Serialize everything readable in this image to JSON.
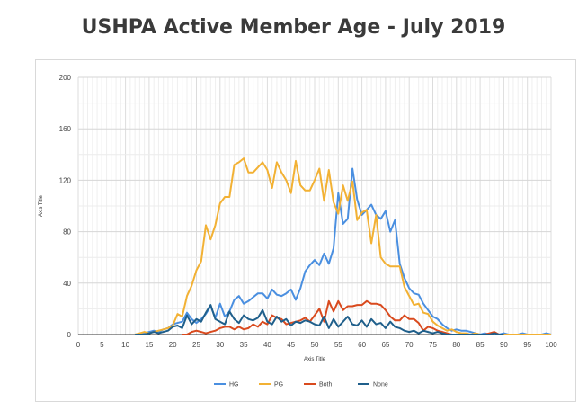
{
  "title": "USHPA Active Member Age - July 2019",
  "colors": {
    "HG": "#4a8fe0",
    "PG": "#f2b134",
    "Both": "#d94a1e",
    "None": "#1f5f8b"
  },
  "chart_data": {
    "type": "line",
    "title": "USHPA Active Member Age - July 2019",
    "xlabel": "Axis Title",
    "ylabel": "Axis Title",
    "xlim": [
      0,
      100
    ],
    "ylim": [
      0,
      200
    ],
    "xticks": [
      0,
      5,
      10,
      15,
      20,
      25,
      30,
      35,
      40,
      45,
      50,
      55,
      60,
      65,
      70,
      75,
      80,
      85,
      90,
      95,
      100
    ],
    "yticks": [
      0,
      40,
      80,
      120,
      160,
      200
    ],
    "grid": true,
    "legend_position": "bottom",
    "series": [
      {
        "name": "HG",
        "x": [
          12,
          13,
          14,
          15,
          16,
          17,
          18,
          19,
          20,
          21,
          22,
          23,
          24,
          25,
          26,
          27,
          28,
          29,
          30,
          31,
          32,
          33,
          34,
          35,
          36,
          37,
          38,
          39,
          40,
          41,
          42,
          43,
          44,
          45,
          46,
          47,
          48,
          49,
          50,
          51,
          52,
          53,
          54,
          55,
          56,
          57,
          58,
          59,
          60,
          61,
          62,
          63,
          64,
          65,
          66,
          67,
          68,
          69,
          70,
          71,
          72,
          73,
          74,
          75,
          76,
          77,
          78,
          79,
          80,
          81,
          82,
          83,
          84,
          85,
          86,
          87,
          88,
          89,
          90,
          91,
          92,
          93,
          94,
          95,
          96,
          97,
          98,
          99,
          100
        ],
        "values": [
          0,
          0,
          1,
          2,
          3,
          2,
          4,
          5,
          8,
          9,
          10,
          17,
          12,
          9,
          12,
          16,
          22,
          13,
          24,
          14,
          18,
          27,
          30,
          24,
          26,
          29,
          32,
          32,
          28,
          35,
          31,
          30,
          32,
          35,
          27,
          36,
          49,
          54,
          58,
          54,
          63,
          55,
          67,
          110,
          86,
          90,
          129,
          105,
          93,
          97,
          101,
          93,
          90,
          96,
          80,
          89,
          55,
          44,
          36,
          32,
          31,
          24,
          19,
          14,
          12,
          8,
          5,
          3,
          4,
          3,
          3,
          2,
          1,
          0,
          1,
          0,
          1,
          0,
          1,
          0,
          0,
          0,
          1,
          0,
          0,
          0,
          0,
          1,
          0
        ]
      },
      {
        "name": "PG",
        "x": [
          12,
          13,
          14,
          15,
          16,
          17,
          18,
          19,
          20,
          21,
          22,
          23,
          24,
          25,
          26,
          27,
          28,
          29,
          30,
          31,
          32,
          33,
          34,
          35,
          36,
          37,
          38,
          39,
          40,
          41,
          42,
          43,
          44,
          45,
          46,
          47,
          48,
          49,
          50,
          51,
          52,
          53,
          54,
          55,
          56,
          57,
          58,
          59,
          60,
          61,
          62,
          63,
          64,
          65,
          66,
          67,
          68,
          69,
          70,
          71,
          72,
          73,
          74,
          75,
          76,
          77,
          78,
          79,
          80,
          81,
          82,
          83,
          84,
          85,
          86,
          87,
          88,
          89,
          90,
          91,
          92,
          93,
          94,
          95,
          96,
          97,
          98,
          99,
          100
        ],
        "values": [
          0,
          1,
          2,
          1,
          2,
          3,
          4,
          5,
          7,
          16,
          14,
          30,
          38,
          50,
          57,
          85,
          74,
          85,
          102,
          107,
          107,
          132,
          134,
          137,
          126,
          126,
          130,
          134,
          128,
          114,
          134,
          126,
          120,
          110,
          135,
          116,
          112,
          112,
          120,
          129,
          104,
          128,
          103,
          94,
          116,
          104,
          119,
          89,
          95,
          97,
          71,
          93,
          60,
          55,
          53,
          53,
          53,
          37,
          30,
          23,
          24,
          17,
          16,
          10,
          7,
          5,
          3,
          4,
          2,
          1,
          1,
          0,
          1,
          0,
          0,
          0,
          0,
          0,
          0,
          0,
          0,
          0,
          0,
          0,
          0,
          0,
          0,
          0,
          0
        ]
      },
      {
        "name": "Both",
        "x": [
          22,
          23,
          24,
          25,
          26,
          27,
          28,
          29,
          30,
          31,
          32,
          33,
          34,
          35,
          36,
          37,
          38,
          39,
          40,
          41,
          42,
          43,
          44,
          45,
          46,
          47,
          48,
          49,
          50,
          51,
          52,
          53,
          54,
          55,
          56,
          57,
          58,
          59,
          60,
          61,
          62,
          63,
          64,
          65,
          66,
          67,
          68,
          69,
          70,
          71,
          72,
          73,
          74,
          75,
          76,
          77,
          78,
          79,
          80,
          81,
          82,
          83,
          84,
          85,
          86,
          87,
          88,
          89,
          90
        ],
        "values": [
          0,
          0,
          2,
          3,
          2,
          1,
          2,
          3,
          5,
          6,
          6,
          4,
          6,
          4,
          5,
          8,
          6,
          10,
          8,
          15,
          13,
          12,
          8,
          9,
          10,
          11,
          13,
          10,
          15,
          20,
          10,
          26,
          18,
          26,
          19,
          22,
          22,
          23,
          23,
          26,
          24,
          24,
          23,
          19,
          14,
          11,
          11,
          15,
          12,
          12,
          9,
          3,
          6,
          5,
          3,
          2,
          1,
          0,
          0,
          0,
          0,
          0,
          0,
          0,
          0,
          1,
          2,
          0,
          0
        ]
      },
      {
        "name": "None",
        "x": [
          12,
          13,
          14,
          15,
          16,
          17,
          18,
          19,
          20,
          21,
          22,
          23,
          24,
          25,
          26,
          27,
          28,
          29,
          30,
          31,
          32,
          33,
          34,
          35,
          36,
          37,
          38,
          39,
          40,
          41,
          42,
          43,
          44,
          45,
          46,
          47,
          48,
          49,
          50,
          51,
          52,
          53,
          54,
          55,
          56,
          57,
          58,
          59,
          60,
          61,
          62,
          63,
          64,
          65,
          66,
          67,
          68,
          69,
          70,
          71,
          72,
          73,
          74,
          75,
          76,
          77,
          78,
          79,
          80,
          81,
          82,
          83,
          84,
          85,
          86,
          87,
          88,
          89,
          90
        ],
        "values": [
          0,
          0,
          0,
          1,
          2,
          1,
          2,
          3,
          6,
          7,
          5,
          15,
          8,
          12,
          10,
          17,
          23,
          12,
          10,
          8,
          18,
          12,
          9,
          15,
          12,
          11,
          13,
          19,
          10,
          8,
          14,
          10,
          12,
          7,
          10,
          9,
          11,
          10,
          8,
          7,
          14,
          5,
          12,
          6,
          10,
          14,
          8,
          7,
          11,
          6,
          12,
          8,
          9,
          5,
          10,
          6,
          5,
          3,
          2,
          3,
          1,
          3,
          2,
          1,
          2,
          1,
          0,
          0,
          0,
          0,
          0,
          0,
          0,
          0,
          0,
          0,
          1,
          0,
          0
        ]
      }
    ]
  }
}
